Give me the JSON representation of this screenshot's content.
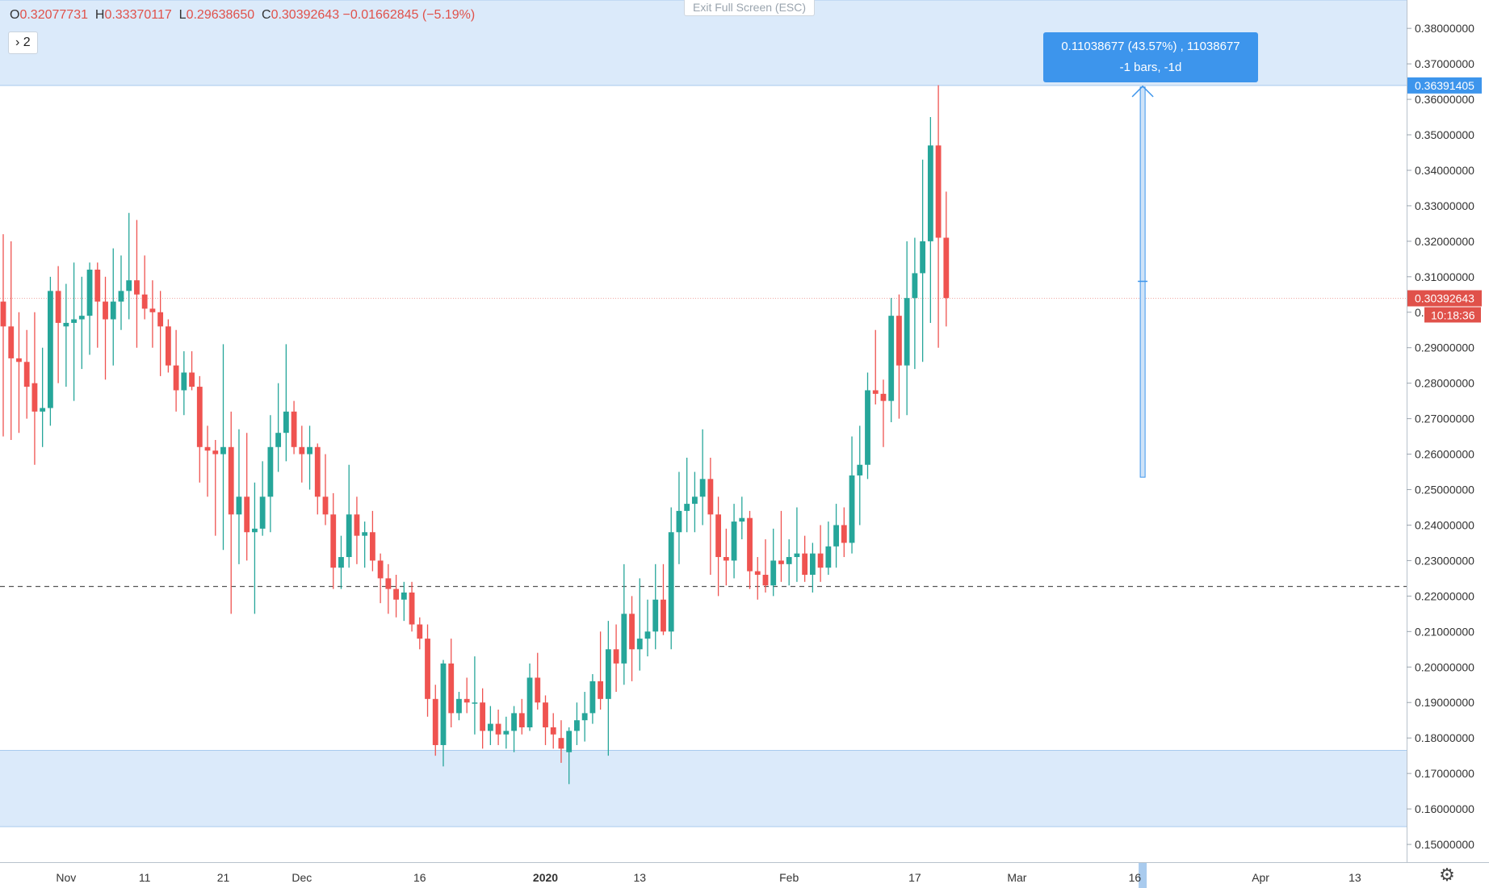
{
  "toolbar": {
    "ohlc": {
      "o_key": "O",
      "o_val": "0.32077731",
      "h_key": "H",
      "h_val": "0.33370117",
      "l_key": "L",
      "l_val": "0.29638650",
      "c_key": "C",
      "c_val": "0.30392643",
      "change": "−0.01662845 (−5.19%)"
    },
    "collapse_label": "› 2",
    "exit_fullscreen_label": "Exit Full Screen (ESC)"
  },
  "measure": {
    "line1": "0.11038677 (43.57%) , 11038677",
    "line2": "-1 bars, -1d"
  },
  "price_axis": {
    "ticks": [
      "0.38000000",
      "0.37000000",
      "0.36000000",
      "0.35000000",
      "0.34000000",
      "0.33000000",
      "0.32000000",
      "0.31000000",
      "0.30000000",
      "0.29000000",
      "0.28000000",
      "0.27000000",
      "0.26000000",
      "0.25000000",
      "0.24000000",
      "0.23000000",
      "0.22000000",
      "0.21000000",
      "0.20000000",
      "0.19000000",
      "0.18000000",
      "0.17000000",
      "0.16000000",
      "0.15000000"
    ],
    "current_price_label": "0.30392643",
    "countdown_label": "10:18:36",
    "target_price_label": "0.36391405"
  },
  "time_axis": {
    "labels": [
      "Nov",
      "11",
      "21",
      "Dec",
      "16",
      "2020",
      "13",
      "Feb",
      "17",
      "Mar",
      "16",
      "Apr",
      "13"
    ]
  },
  "settings_icon": "gear-icon",
  "colors": {
    "up": "#26a69a",
    "down": "#ef5350",
    "zone": "#dbeafa",
    "measure": "#3d95ec",
    "current_price": "#e0514a"
  },
  "chart_data": {
    "type": "candlestick",
    "title": "",
    "xlabel": "",
    "ylabel": "",
    "x_range": [
      "2019-10-24",
      "2020-04-20"
    ],
    "ylim": [
      0.145,
      0.388
    ],
    "grid": false,
    "legend": "none",
    "candles": [
      {
        "date": "2019-10-24",
        "o": 0.303,
        "h": 0.322,
        "l": 0.265,
        "c": 0.296
      },
      {
        "date": "2019-10-25",
        "o": 0.296,
        "h": 0.32,
        "l": 0.264,
        "c": 0.287
      },
      {
        "date": "2019-10-26",
        "o": 0.287,
        "h": 0.3,
        "l": 0.266,
        "c": 0.286
      },
      {
        "date": "2019-10-27",
        "o": 0.286,
        "h": 0.295,
        "l": 0.27,
        "c": 0.279
      },
      {
        "date": "2019-10-28",
        "o": 0.28,
        "h": 0.3,
        "l": 0.257,
        "c": 0.272
      },
      {
        "date": "2019-10-29",
        "o": 0.272,
        "h": 0.29,
        "l": 0.262,
        "c": 0.273
      },
      {
        "date": "2019-10-30",
        "o": 0.273,
        "h": 0.31,
        "l": 0.268,
        "c": 0.306
      },
      {
        "date": "2019-10-31",
        "o": 0.306,
        "h": 0.313,
        "l": 0.28,
        "c": 0.297
      },
      {
        "date": "2019-11-01",
        "o": 0.296,
        "h": 0.308,
        "l": 0.279,
        "c": 0.297
      },
      {
        "date": "2019-11-02",
        "o": 0.297,
        "h": 0.314,
        "l": 0.275,
        "c": 0.298
      },
      {
        "date": "2019-11-03",
        "o": 0.298,
        "h": 0.31,
        "l": 0.284,
        "c": 0.299
      },
      {
        "date": "2019-11-04",
        "o": 0.299,
        "h": 0.314,
        "l": 0.288,
        "c": 0.312
      },
      {
        "date": "2019-11-05",
        "o": 0.312,
        "h": 0.314,
        "l": 0.29,
        "c": 0.303
      },
      {
        "date": "2019-11-06",
        "o": 0.303,
        "h": 0.31,
        "l": 0.281,
        "c": 0.298
      },
      {
        "date": "2019-11-07",
        "o": 0.298,
        "h": 0.318,
        "l": 0.285,
        "c": 0.303
      },
      {
        "date": "2019-11-08",
        "o": 0.303,
        "h": 0.316,
        "l": 0.295,
        "c": 0.306
      },
      {
        "date": "2019-11-09",
        "o": 0.306,
        "h": 0.328,
        "l": 0.298,
        "c": 0.309
      },
      {
        "date": "2019-11-10",
        "o": 0.309,
        "h": 0.326,
        "l": 0.29,
        "c": 0.305
      },
      {
        "date": "2019-11-11",
        "o": 0.305,
        "h": 0.316,
        "l": 0.298,
        "c": 0.301
      },
      {
        "date": "2019-11-12",
        "o": 0.301,
        "h": 0.309,
        "l": 0.29,
        "c": 0.3
      },
      {
        "date": "2019-11-13",
        "o": 0.3,
        "h": 0.306,
        "l": 0.282,
        "c": 0.296
      },
      {
        "date": "2019-11-14",
        "o": 0.296,
        "h": 0.298,
        "l": 0.283,
        "c": 0.285
      },
      {
        "date": "2019-11-15",
        "o": 0.285,
        "h": 0.295,
        "l": 0.272,
        "c": 0.278
      },
      {
        "date": "2019-11-16",
        "o": 0.278,
        "h": 0.289,
        "l": 0.271,
        "c": 0.283
      },
      {
        "date": "2019-11-17",
        "o": 0.283,
        "h": 0.289,
        "l": 0.278,
        "c": 0.279
      },
      {
        "date": "2019-11-18",
        "o": 0.279,
        "h": 0.282,
        "l": 0.252,
        "c": 0.262
      },
      {
        "date": "2019-11-19",
        "o": 0.262,
        "h": 0.268,
        "l": 0.248,
        "c": 0.261
      },
      {
        "date": "2019-11-20",
        "o": 0.261,
        "h": 0.264,
        "l": 0.237,
        "c": 0.26
      },
      {
        "date": "2019-11-21",
        "o": 0.26,
        "h": 0.291,
        "l": 0.233,
        "c": 0.262
      },
      {
        "date": "2019-11-22",
        "o": 0.262,
        "h": 0.272,
        "l": 0.215,
        "c": 0.243
      },
      {
        "date": "2019-11-23",
        "o": 0.243,
        "h": 0.267,
        "l": 0.229,
        "c": 0.248
      },
      {
        "date": "2019-11-24",
        "o": 0.248,
        "h": 0.266,
        "l": 0.23,
        "c": 0.238
      },
      {
        "date": "2019-11-25",
        "o": 0.238,
        "h": 0.252,
        "l": 0.215,
        "c": 0.239
      },
      {
        "date": "2019-11-26",
        "o": 0.239,
        "h": 0.258,
        "l": 0.237,
        "c": 0.248
      },
      {
        "date": "2019-11-27",
        "o": 0.248,
        "h": 0.271,
        "l": 0.238,
        "c": 0.262
      },
      {
        "date": "2019-11-28",
        "o": 0.262,
        "h": 0.28,
        "l": 0.255,
        "c": 0.266
      },
      {
        "date": "2019-11-29",
        "o": 0.266,
        "h": 0.291,
        "l": 0.258,
        "c": 0.272
      },
      {
        "date": "2019-11-30",
        "o": 0.272,
        "h": 0.275,
        "l": 0.26,
        "c": 0.262
      },
      {
        "date": "2019-12-01",
        "o": 0.262,
        "h": 0.268,
        "l": 0.252,
        "c": 0.26
      },
      {
        "date": "2019-12-02",
        "o": 0.26,
        "h": 0.268,
        "l": 0.25,
        "c": 0.262
      },
      {
        "date": "2019-12-03",
        "o": 0.262,
        "h": 0.263,
        "l": 0.243,
        "c": 0.248
      },
      {
        "date": "2019-12-04",
        "o": 0.248,
        "h": 0.26,
        "l": 0.24,
        "c": 0.243
      },
      {
        "date": "2019-12-05",
        "o": 0.243,
        "h": 0.249,
        "l": 0.222,
        "c": 0.228
      },
      {
        "date": "2019-12-06",
        "o": 0.228,
        "h": 0.237,
        "l": 0.222,
        "c": 0.231
      },
      {
        "date": "2019-12-07",
        "o": 0.231,
        "h": 0.257,
        "l": 0.228,
        "c": 0.243
      },
      {
        "date": "2019-12-08",
        "o": 0.243,
        "h": 0.248,
        "l": 0.229,
        "c": 0.237
      },
      {
        "date": "2019-12-09",
        "o": 0.237,
        "h": 0.241,
        "l": 0.228,
        "c": 0.238
      },
      {
        "date": "2019-12-10",
        "o": 0.238,
        "h": 0.244,
        "l": 0.227,
        "c": 0.23
      },
      {
        "date": "2019-12-11",
        "o": 0.23,
        "h": 0.232,
        "l": 0.218,
        "c": 0.225
      },
      {
        "date": "2019-12-12",
        "o": 0.225,
        "h": 0.229,
        "l": 0.215,
        "c": 0.222
      },
      {
        "date": "2019-12-13",
        "o": 0.222,
        "h": 0.226,
        "l": 0.214,
        "c": 0.219
      },
      {
        "date": "2019-12-14",
        "o": 0.219,
        "h": 0.224,
        "l": 0.213,
        "c": 0.221
      },
      {
        "date": "2019-12-15",
        "o": 0.221,
        "h": 0.224,
        "l": 0.21,
        "c": 0.212
      },
      {
        "date": "2019-12-16",
        "o": 0.212,
        "h": 0.214,
        "l": 0.205,
        "c": 0.208
      },
      {
        "date": "2019-12-17",
        "o": 0.208,
        "h": 0.212,
        "l": 0.186,
        "c": 0.191
      },
      {
        "date": "2019-12-18",
        "o": 0.191,
        "h": 0.195,
        "l": 0.175,
        "c": 0.178
      },
      {
        "date": "2019-12-19",
        "o": 0.178,
        "h": 0.202,
        "l": 0.172,
        "c": 0.201
      },
      {
        "date": "2019-12-20",
        "o": 0.201,
        "h": 0.208,
        "l": 0.183,
        "c": 0.187
      },
      {
        "date": "2019-12-21",
        "o": 0.187,
        "h": 0.193,
        "l": 0.185,
        "c": 0.191
      },
      {
        "date": "2019-12-22",
        "o": 0.191,
        "h": 0.197,
        "l": 0.187,
        "c": 0.19
      },
      {
        "date": "2019-12-23",
        "o": 0.19,
        "h": 0.203,
        "l": 0.181,
        "c": 0.19
      },
      {
        "date": "2019-12-24",
        "o": 0.19,
        "h": 0.194,
        "l": 0.177,
        "c": 0.182
      },
      {
        "date": "2019-12-25",
        "o": 0.182,
        "h": 0.189,
        "l": 0.178,
        "c": 0.184
      },
      {
        "date": "2019-12-26",
        "o": 0.184,
        "h": 0.188,
        "l": 0.178,
        "c": 0.181
      },
      {
        "date": "2019-12-27",
        "o": 0.181,
        "h": 0.186,
        "l": 0.177,
        "c": 0.182
      },
      {
        "date": "2019-12-28",
        "o": 0.182,
        "h": 0.189,
        "l": 0.176,
        "c": 0.187
      },
      {
        "date": "2019-12-29",
        "o": 0.187,
        "h": 0.191,
        "l": 0.181,
        "c": 0.183
      },
      {
        "date": "2019-12-30",
        "o": 0.183,
        "h": 0.201,
        "l": 0.182,
        "c": 0.197
      },
      {
        "date": "2019-12-31",
        "o": 0.197,
        "h": 0.204,
        "l": 0.188,
        "c": 0.19
      },
      {
        "date": "2020-01-01",
        "o": 0.19,
        "h": 0.192,
        "l": 0.178,
        "c": 0.183
      },
      {
        "date": "2020-01-02",
        "o": 0.183,
        "h": 0.187,
        "l": 0.177,
        "c": 0.181
      },
      {
        "date": "2020-01-03",
        "o": 0.18,
        "h": 0.185,
        "l": 0.173,
        "c": 0.177
      },
      {
        "date": "2020-01-04",
        "o": 0.176,
        "h": 0.183,
        "l": 0.167,
        "c": 0.182
      },
      {
        "date": "2020-01-05",
        "o": 0.182,
        "h": 0.19,
        "l": 0.178,
        "c": 0.185
      },
      {
        "date": "2020-01-06",
        "o": 0.185,
        "h": 0.193,
        "l": 0.179,
        "c": 0.187
      },
      {
        "date": "2020-01-07",
        "o": 0.187,
        "h": 0.198,
        "l": 0.184,
        "c": 0.196
      },
      {
        "date": "2020-01-08",
        "o": 0.196,
        "h": 0.21,
        "l": 0.188,
        "c": 0.191
      },
      {
        "date": "2020-01-09",
        "o": 0.191,
        "h": 0.213,
        "l": 0.175,
        "c": 0.205
      },
      {
        "date": "2020-01-10",
        "o": 0.205,
        "h": 0.212,
        "l": 0.193,
        "c": 0.201
      },
      {
        "date": "2020-01-11",
        "o": 0.201,
        "h": 0.229,
        "l": 0.195,
        "c": 0.215
      },
      {
        "date": "2020-01-12",
        "o": 0.215,
        "h": 0.22,
        "l": 0.196,
        "c": 0.205
      },
      {
        "date": "2020-01-13",
        "o": 0.205,
        "h": 0.225,
        "l": 0.199,
        "c": 0.208
      },
      {
        "date": "2020-01-14",
        "o": 0.208,
        "h": 0.219,
        "l": 0.203,
        "c": 0.21
      },
      {
        "date": "2020-01-15",
        "o": 0.21,
        "h": 0.229,
        "l": 0.205,
        "c": 0.219
      },
      {
        "date": "2020-01-16",
        "o": 0.219,
        "h": 0.229,
        "l": 0.209,
        "c": 0.21
      },
      {
        "date": "2020-01-17",
        "o": 0.21,
        "h": 0.245,
        "l": 0.205,
        "c": 0.238
      },
      {
        "date": "2020-01-18",
        "o": 0.238,
        "h": 0.255,
        "l": 0.229,
        "c": 0.244
      },
      {
        "date": "2020-01-19",
        "o": 0.244,
        "h": 0.259,
        "l": 0.238,
        "c": 0.246
      },
      {
        "date": "2020-01-20",
        "o": 0.246,
        "h": 0.255,
        "l": 0.238,
        "c": 0.248
      },
      {
        "date": "2020-01-21",
        "o": 0.248,
        "h": 0.267,
        "l": 0.24,
        "c": 0.253
      },
      {
        "date": "2020-01-22",
        "o": 0.253,
        "h": 0.259,
        "l": 0.226,
        "c": 0.243
      },
      {
        "date": "2020-01-23",
        "o": 0.243,
        "h": 0.248,
        "l": 0.22,
        "c": 0.231
      },
      {
        "date": "2020-01-24",
        "o": 0.231,
        "h": 0.239,
        "l": 0.223,
        "c": 0.23
      },
      {
        "date": "2020-01-25",
        "o": 0.23,
        "h": 0.246,
        "l": 0.225,
        "c": 0.241
      },
      {
        "date": "2020-01-26",
        "o": 0.241,
        "h": 0.248,
        "l": 0.236,
        "c": 0.242
      },
      {
        "date": "2020-01-27",
        "o": 0.242,
        "h": 0.244,
        "l": 0.222,
        "c": 0.227
      },
      {
        "date": "2020-01-28",
        "o": 0.227,
        "h": 0.231,
        "l": 0.219,
        "c": 0.226
      },
      {
        "date": "2020-01-29",
        "o": 0.226,
        "h": 0.236,
        "l": 0.221,
        "c": 0.223
      },
      {
        "date": "2020-01-30",
        "o": 0.223,
        "h": 0.239,
        "l": 0.22,
        "c": 0.23
      },
      {
        "date": "2020-01-31",
        "o": 0.23,
        "h": 0.244,
        "l": 0.224,
        "c": 0.229
      },
      {
        "date": "2020-02-01",
        "o": 0.229,
        "h": 0.236,
        "l": 0.223,
        "c": 0.231
      },
      {
        "date": "2020-02-02",
        "o": 0.231,
        "h": 0.245,
        "l": 0.224,
        "c": 0.232
      },
      {
        "date": "2020-02-03",
        "o": 0.232,
        "h": 0.237,
        "l": 0.224,
        "c": 0.226
      },
      {
        "date": "2020-02-04",
        "o": 0.226,
        "h": 0.235,
        "l": 0.221,
        "c": 0.232
      },
      {
        "date": "2020-02-05",
        "o": 0.232,
        "h": 0.24,
        "l": 0.224,
        "c": 0.228
      },
      {
        "date": "2020-02-06",
        "o": 0.228,
        "h": 0.241,
        "l": 0.226,
        "c": 0.234
      },
      {
        "date": "2020-02-07",
        "o": 0.234,
        "h": 0.246,
        "l": 0.228,
        "c": 0.24
      },
      {
        "date": "2020-02-08",
        "o": 0.24,
        "h": 0.245,
        "l": 0.231,
        "c": 0.235
      },
      {
        "date": "2020-02-09",
        "o": 0.235,
        "h": 0.265,
        "l": 0.232,
        "c": 0.254
      },
      {
        "date": "2020-02-10",
        "o": 0.254,
        "h": 0.268,
        "l": 0.24,
        "c": 0.257
      },
      {
        "date": "2020-02-11",
        "o": 0.257,
        "h": 0.283,
        "l": 0.253,
        "c": 0.278
      },
      {
        "date": "2020-02-12",
        "o": 0.278,
        "h": 0.295,
        "l": 0.274,
        "c": 0.277
      },
      {
        "date": "2020-02-13",
        "o": 0.277,
        "h": 0.281,
        "l": 0.262,
        "c": 0.275
      },
      {
        "date": "2020-02-14",
        "o": 0.275,
        "h": 0.304,
        "l": 0.269,
        "c": 0.299
      },
      {
        "date": "2020-02-15",
        "o": 0.299,
        "h": 0.305,
        "l": 0.27,
        "c": 0.285
      },
      {
        "date": "2020-02-16",
        "o": 0.285,
        "h": 0.32,
        "l": 0.271,
        "c": 0.304
      },
      {
        "date": "2020-02-17",
        "o": 0.304,
        "h": 0.321,
        "l": 0.284,
        "c": 0.311
      },
      {
        "date": "2020-02-18",
        "o": 0.311,
        "h": 0.343,
        "l": 0.286,
        "c": 0.32
      },
      {
        "date": "2020-02-19",
        "o": 0.32,
        "h": 0.355,
        "l": 0.297,
        "c": 0.347
      },
      {
        "date": "2020-02-20",
        "o": 0.347,
        "h": 0.364,
        "l": 0.29,
        "c": 0.321
      },
      {
        "date": "2020-02-21",
        "o": 0.321,
        "h": 0.334,
        "l": 0.296,
        "c": 0.304
      }
    ],
    "support_level": 0.2227,
    "current_price": 0.30392643,
    "zones": [
      {
        "from": 0.36391405,
        "to": 0.388
      },
      {
        "from": 0.155,
        "to": 0.1765
      }
    ],
    "measure": {
      "date": "2020-03-17",
      "from": 0.2535,
      "to": 0.36391405
    }
  }
}
